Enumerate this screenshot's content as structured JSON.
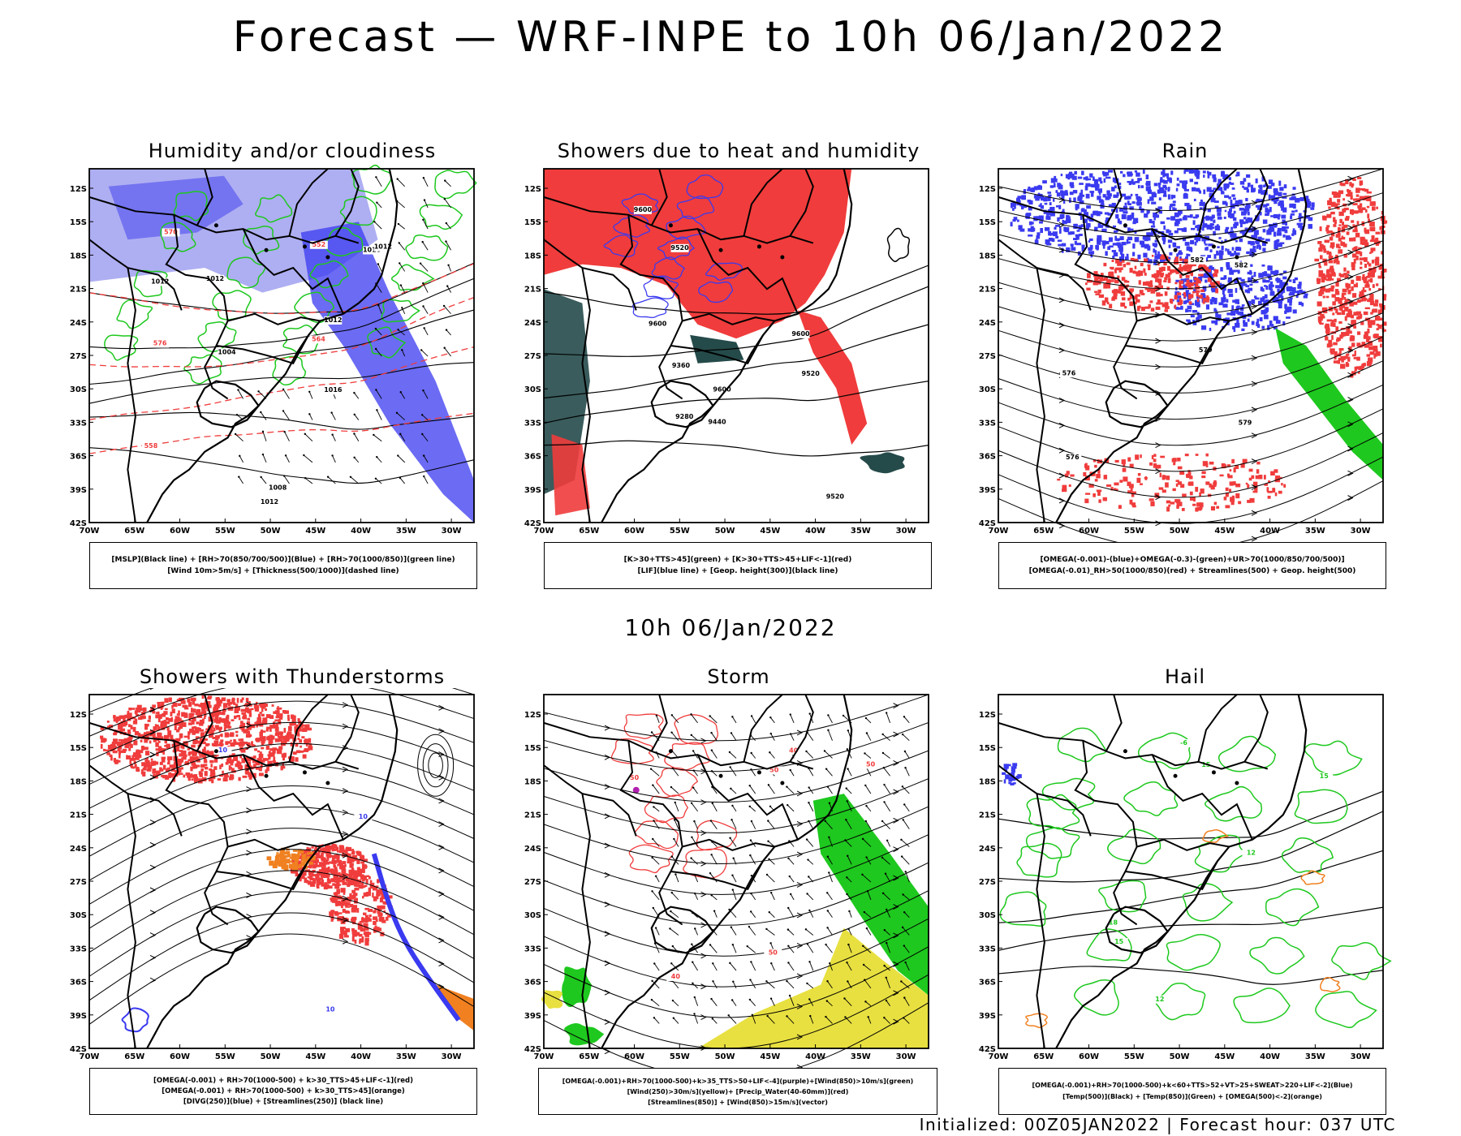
{
  "title": "Forecast — WRF-INPE to 10h 06/Jan/2022",
  "subtitle": "10h 06/Jan/2022",
  "footer": "Initialized: 00Z05JAN2022 | Forecast hour: 037 UTC",
  "axes": {
    "lon_labels": [
      "70W",
      "65W",
      "60W",
      "55W",
      "50W",
      "45W",
      "40W",
      "35W",
      "30W"
    ],
    "lat_labels": [
      "12S",
      "15S",
      "18S",
      "21S",
      "24S",
      "27S",
      "30S",
      "33S",
      "36S",
      "39S",
      "42S"
    ]
  },
  "colors": {
    "blue": "#3a3af0",
    "light_blue": "#a0a0f0",
    "red": "#f03c3c",
    "green": "#1ec81e",
    "dark_teal": "#254a4a",
    "orange": "#f08020",
    "yellow": "#e8e040",
    "purple": "#b020b0"
  },
  "panels": [
    {
      "title": "Humidity and/or cloudiness",
      "legend": [
        "[MSLP](Black line) + [RH>70(850/700/500)](Blue) + [RH>70(1000/850)](green line)",
        "[Wind 10m>5m/s] + [Thickness(500/1000)](dashed line)"
      ],
      "contour_labels": [
        "1012",
        "1012",
        "1012",
        "1008",
        "1016",
        "1012",
        "1016",
        "1004",
        "1012",
        "570",
        "576",
        "564",
        "558",
        "552"
      ]
    },
    {
      "title": "Showers due to heat and humidity",
      "legend": [
        "[K>30+TTS>45](green) + [K>30+TTS>45+LIF<-1](red)",
        "[LIF](blue line) + [Geop. height(300)](black line)"
      ],
      "contour_labels": [
        "9600",
        "9600",
        "9600",
        "9520",
        "9520",
        "9520",
        "9440",
        "9360",
        "9280",
        "9600"
      ]
    },
    {
      "title": "Rain",
      "legend": [
        "[OMEGA(-0.001)-(blue)+OMEGA(-0.3)-(green)+UR>70(1000/850/700/500)]",
        "[OMEGA(-0.01)_RH>50(1000/850)(red) + Streamlines(500) + Geop. height(500)"
      ],
      "contour_labels": [
        "582",
        "582",
        "579",
        "576",
        "579",
        "576"
      ]
    },
    {
      "title": "Showers with Thunderstorms",
      "legend": [
        "[OMEGA(-0.001) + RH>70(1000-500) + k>30_TTS>45+LIF<-1](red)",
        "[OMEGA(-0.001) + RH>70(1000-500) + k>30_TTS>45](orange)",
        "[DIVG(250)](blue) + [Streamlines(250)] (black line)"
      ],
      "contour_labels": [
        "10",
        "10",
        "10"
      ]
    },
    {
      "title": "Storm",
      "legend": [
        "[OMEGA(-0.001)+RH>70(1000-500)+k>35_TTS>50+LIF<-4](purple)+[Wind(850)>10m/s](green)",
        "[Wind(250)>30m/s](yellow)+ [Precip_Water(40-60mm)](red)",
        "[Streamlines(850)] + [Wind(850)>15m/s](vector)"
      ],
      "contour_labels": [
        "50",
        "50",
        "40",
        "50",
        "40",
        "50"
      ]
    },
    {
      "title": "Hail",
      "legend": [
        "[OMEGA(-0.001)+RH>70(1000-500)+k<60+TTS>52+VT>25+SWEAT>220+LIF<-2](Blue)",
        "[Temp(500)](Black) + [Temp(850)](Green) + [OMEGA(500)<-2](orange)"
      ],
      "contour_labels": [
        "-6",
        "15",
        "12",
        "18",
        "15",
        "15",
        "12"
      ]
    }
  ]
}
